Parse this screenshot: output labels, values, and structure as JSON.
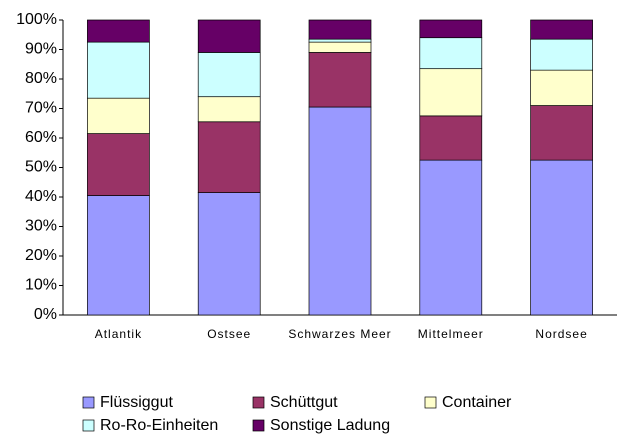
{
  "chart_data": {
    "type": "stacked_bar",
    "categories": [
      "Atlantik",
      "Ostsee",
      "Schwarzes Meer",
      "Mittelmeer",
      "Nordsee"
    ],
    "series": [
      {
        "name": "Flüssiggut",
        "color": "#9999ff",
        "values": [
          40.5,
          41.5,
          70.5,
          52.5,
          52.5
        ]
      },
      {
        "name": "Schüttgut",
        "color": "#993366",
        "values": [
          21,
          24,
          18.5,
          15,
          18.5
        ]
      },
      {
        "name": "Container",
        "color": "#ffffcc",
        "values": [
          12,
          8.5,
          3.5,
          16,
          12
        ]
      },
      {
        "name": "Ro-Ro-Einheiten",
        "color": "#ccffff",
        "values": [
          19,
          15,
          1,
          10.5,
          10.5
        ]
      },
      {
        "name": "Sonstige Ladung",
        "color": "#660066",
        "values": [
          7.5,
          11,
          6.5,
          6,
          6.5
        ]
      }
    ],
    "ylim": [
      0,
      100
    ],
    "yticks": [
      {
        "value": 0,
        "label": "0%"
      },
      {
        "value": 10,
        "label": "10%"
      },
      {
        "value": 20,
        "label": "20%"
      },
      {
        "value": 30,
        "label": "30%"
      },
      {
        "value": 40,
        "label": "40%"
      },
      {
        "value": 50,
        "label": "50%"
      },
      {
        "value": 60,
        "label": "60%"
      },
      {
        "value": 70,
        "label": "70%"
      },
      {
        "value": 80,
        "label": "80%"
      },
      {
        "value": 90,
        "label": "90%"
      },
      {
        "value": 100,
        "label": "100%"
      }
    ],
    "grid": false,
    "legend": "bottom"
  }
}
